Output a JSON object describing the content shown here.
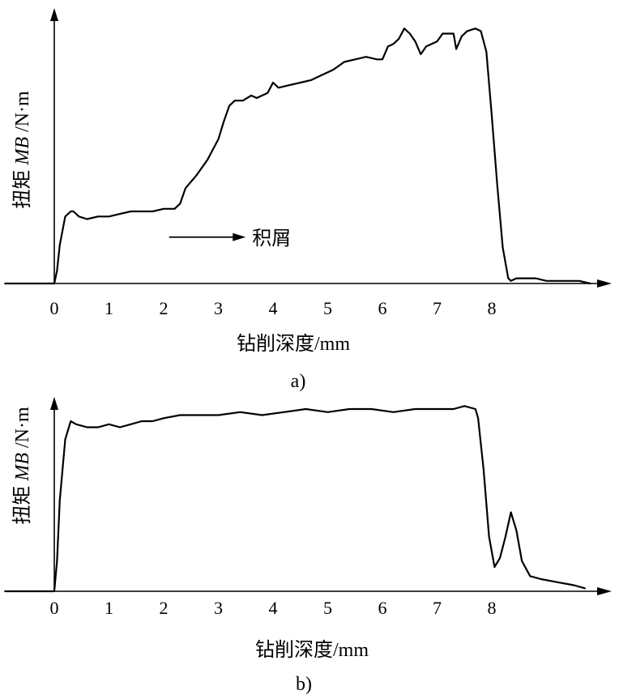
{
  "chart_data": [
    {
      "type": "line",
      "panel_caption": "a)",
      "xlabel": "钻削深度/mm",
      "ylabel": {
        "prefix": "扭矩 ",
        "italic": "MB",
        "suffix": " /N·m"
      },
      "x_ticks": [
        "0",
        "1",
        "2",
        "3",
        "4",
        "5",
        "6",
        "7",
        "8"
      ],
      "xlim": [
        -0.9,
        10.3
      ],
      "ylim": [
        0,
        1
      ],
      "annotation": {
        "text": "积屑",
        "arrow_from_x": 2.1,
        "arrow_to_x": 3.5,
        "y": 0.18
      },
      "series": [
        {
          "x": [
            -0.9,
            0.0,
            0.05,
            0.1,
            0.2,
            0.3,
            0.35,
            0.45,
            0.6,
            0.8,
            1.0,
            1.2,
            1.4,
            1.6,
            1.8,
            2.0,
            2.2,
            2.3,
            2.4,
            2.6,
            2.8,
            3.0,
            3.1,
            3.2,
            3.3,
            3.45,
            3.6,
            3.7,
            3.9,
            4.0,
            4.1,
            4.3,
            4.5,
            4.7,
            4.9,
            5.1,
            5.3,
            5.5,
            5.7,
            5.9,
            6.0,
            6.1,
            6.2,
            6.3,
            6.4,
            6.5,
            6.6,
            6.7,
            6.8,
            6.9,
            7.0,
            7.1,
            7.3,
            7.35,
            7.45,
            7.55,
            7.7,
            7.8,
            7.9,
            8.0,
            8.1,
            8.2,
            8.3,
            8.35,
            8.45,
            8.6,
            8.8,
            9.0,
            9.2,
            9.4,
            9.6,
            9.8
          ],
          "y": [
            0,
            0,
            0.05,
            0.15,
            0.26,
            0.28,
            0.28,
            0.26,
            0.25,
            0.26,
            0.26,
            0.27,
            0.28,
            0.28,
            0.28,
            0.29,
            0.29,
            0.31,
            0.37,
            0.42,
            0.48,
            0.56,
            0.63,
            0.69,
            0.71,
            0.71,
            0.73,
            0.72,
            0.74,
            0.78,
            0.76,
            0.77,
            0.78,
            0.79,
            0.81,
            0.83,
            0.86,
            0.87,
            0.88,
            0.87,
            0.87,
            0.92,
            0.93,
            0.95,
            0.99,
            0.97,
            0.94,
            0.89,
            0.92,
            0.93,
            0.94,
            0.97,
            0.97,
            0.91,
            0.96,
            0.98,
            0.99,
            0.98,
            0.9,
            0.65,
            0.38,
            0.14,
            0.02,
            0.01,
            0.02,
            0.02,
            0.02,
            0.01,
            0.01,
            0.01,
            0.01,
            0.0
          ]
        }
      ]
    },
    {
      "type": "line",
      "panel_caption": "b)",
      "xlabel": "钻削深度/mm",
      "ylabel": {
        "prefix": "扭矩 ",
        "italic": "MB",
        "suffix": " /N·m"
      },
      "x_ticks": [
        "0",
        "1",
        "2",
        "3",
        "4",
        "5",
        "6",
        "7",
        "8"
      ],
      "xlim": [
        -0.9,
        10.3
      ],
      "ylim": [
        0,
        1
      ],
      "series": [
        {
          "x": [
            -0.9,
            0.0,
            0.05,
            0.1,
            0.2,
            0.3,
            0.4,
            0.6,
            0.8,
            1.0,
            1.2,
            1.4,
            1.6,
            1.8,
            2.0,
            2.3,
            2.6,
            3.0,
            3.4,
            3.8,
            4.2,
            4.6,
            5.0,
            5.4,
            5.8,
            6.2,
            6.6,
            7.0,
            7.3,
            7.5,
            7.7,
            7.75,
            7.85,
            7.95,
            8.05,
            8.15,
            8.25,
            8.35,
            8.45,
            8.55,
            8.7,
            8.9,
            9.2,
            9.5,
            9.7
          ],
          "y": [
            0,
            0,
            0.1,
            0.3,
            0.5,
            0.56,
            0.55,
            0.54,
            0.54,
            0.55,
            0.54,
            0.55,
            0.56,
            0.56,
            0.57,
            0.58,
            0.58,
            0.58,
            0.59,
            0.58,
            0.59,
            0.6,
            0.59,
            0.6,
            0.6,
            0.59,
            0.6,
            0.6,
            0.6,
            0.61,
            0.6,
            0.57,
            0.4,
            0.18,
            0.08,
            0.11,
            0.18,
            0.26,
            0.2,
            0.1,
            0.05,
            0.04,
            0.03,
            0.02,
            0.01
          ]
        }
      ]
    }
  ]
}
